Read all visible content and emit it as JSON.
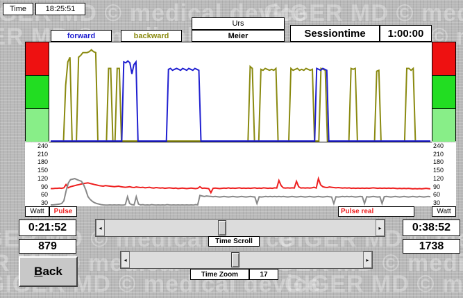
{
  "watermark_text": "GIGER MD © medical device",
  "header": {
    "time_label": "Time",
    "time_value": "18:25:51",
    "forward_label": "forward",
    "backward_label": "backward",
    "first_name": "Urs",
    "last_name": "Meier",
    "session_label": "Sessiontime",
    "session_value": "1:00:00"
  },
  "colors": {
    "forward": "#1f1fd0",
    "backward": "#8a8a10",
    "pulse": "#ee2020",
    "pulse_real": "#888888",
    "zone_red": "#ee1111",
    "zone_green": "#22dd22",
    "zone_lightgreen": "#88ee88"
  },
  "axis": {
    "ticks": [
      "240",
      "210",
      "180",
      "150",
      "120",
      "90",
      "60",
      "30"
    ],
    "unit_left": "Watt",
    "unit_right": "Watt",
    "pulse_label": "Pulse",
    "pulse_real_label": "Pulse real"
  },
  "stats": {
    "left_time": "0:21:52",
    "left_value": "879",
    "right_time": "0:38:52",
    "right_value": "1738"
  },
  "controls": {
    "time_scroll_label": "Time Scroll",
    "time_scroll_position": 0.43,
    "time_zoom_label": "Time Zoom",
    "time_zoom_value": "17",
    "time_zoom_position": 0.45,
    "back_label": "Back",
    "back_mnemonic": "B",
    "back_rest": "ack",
    "left_arrow": "◂",
    "right_arrow": "▸"
  },
  "chart_data": [
    {
      "type": "line",
      "series": [
        {
          "key": "backward",
          "values": [
            0,
            0,
            0,
            0,
            0,
            0,
            0,
            60,
            85,
            90,
            0,
            0,
            0,
            90,
            92,
            95,
            95,
            95,
            96,
            98,
            96,
            95,
            0,
            0,
            0,
            0,
            0,
            78,
            78,
            0,
            0,
            78,
            78,
            0,
            0,
            0,
            0,
            0,
            0,
            0,
            0,
            0,
            0,
            0,
            0,
            0,
            0,
            0,
            0,
            0,
            0,
            0,
            0,
            0,
            0,
            0,
            0,
            0,
            0,
            0,
            0,
            0,
            0,
            0,
            0,
            0,
            0,
            0,
            0,
            0,
            0,
            0,
            0,
            0,
            0,
            0,
            0,
            0,
            0,
            0,
            0,
            0,
            0,
            0,
            0,
            0,
            0,
            0,
            0,
            0,
            0,
            0,
            0,
            80,
            78,
            0,
            0,
            0,
            77,
            76,
            78,
            77,
            76,
            77,
            76,
            78,
            0,
            0,
            0,
            0,
            0,
            0,
            78,
            76,
            77,
            78,
            76,
            77,
            76,
            78,
            77,
            76,
            77,
            0,
            0,
            0,
            78,
            77,
            76,
            0,
            0,
            0,
            0,
            0,
            0,
            0,
            0,
            0,
            0,
            0,
            78,
            77,
            78,
            0,
            0,
            0,
            0,
            0,
            0,
            0,
            0,
            0,
            75,
            76,
            0,
            0,
            0,
            0,
            0,
            0,
            0,
            0,
            0,
            0,
            0,
            0,
            78,
            78,
            76,
            78,
            0,
            0,
            0,
            0,
            0,
            0,
            0,
            0
          ]
        },
        {
          "key": "forward",
          "values": [
            0,
            0,
            0,
            0,
            0,
            0,
            0,
            0,
            0,
            0,
            0,
            0,
            0,
            0,
            0,
            0,
            0,
            0,
            0,
            0,
            0,
            0,
            0,
            0,
            0,
            0,
            0,
            0,
            0,
            0,
            0,
            0,
            0,
            0,
            0,
            0,
            85,
            84,
            86,
            84,
            72,
            82,
            85,
            0,
            0,
            0,
            0,
            0,
            0,
            0,
            0,
            0,
            0,
            0,
            0,
            0,
            0,
            0,
            77,
            78,
            76,
            77,
            78,
            77,
            76,
            78,
            77,
            76,
            78,
            77,
            76,
            78,
            77,
            76,
            0,
            0,
            0,
            0,
            0,
            0,
            0,
            0,
            0,
            0,
            0,
            0,
            0,
            0,
            0,
            0,
            0,
            0,
            0,
            0,
            0,
            0,
            0,
            0,
            0,
            0,
            0,
            0,
            0,
            0,
            0,
            0,
            0,
            0,
            0,
            0,
            0,
            0,
            0,
            0,
            0,
            0,
            0,
            0,
            0,
            0,
            0,
            0,
            0,
            0,
            0,
            0,
            0,
            0,
            0,
            0,
            0,
            78,
            77,
            76,
            78,
            77,
            76,
            0,
            0,
            0,
            0,
            0,
            0,
            0,
            0,
            0,
            0,
            0,
            0,
            0,
            0,
            0,
            0,
            0,
            0,
            0,
            0,
            0,
            0,
            0,
            0,
            0,
            0,
            0,
            0,
            0,
            0,
            0,
            0,
            0,
            0,
            0,
            0,
            0,
            0,
            0,
            0,
            0,
            0,
            0,
            0,
            0,
            0,
            0,
            0,
            0,
            0,
            0
          ]
        }
      ]
    },
    {
      "type": "line",
      "ylim": [
        0,
        240
      ],
      "series": [
        {
          "key": "pulse",
          "values": [
            85,
            85,
            86,
            86,
            87,
            86,
            88,
            100,
            88,
            92,
            94,
            96,
            98,
            100,
            102,
            104,
            105,
            106,
            104,
            102,
            100,
            98,
            96,
            95,
            94,
            96,
            95,
            94,
            93,
            92,
            93,
            94,
            92,
            91,
            90,
            91,
            92,
            90,
            89,
            91,
            90,
            89,
            90,
            88,
            89,
            90,
            88,
            87,
            89,
            88,
            87,
            88,
            86,
            87,
            88,
            87,
            86,
            87,
            85,
            86,
            87,
            86,
            85,
            86,
            87,
            86,
            85,
            86,
            92,
            86,
            87,
            86,
            85,
            70,
            86,
            87,
            86,
            85,
            86,
            87,
            86,
            88,
            86,
            87,
            86,
            87,
            88,
            86,
            87,
            86,
            87,
            86,
            87,
            88,
            86,
            87,
            86,
            88,
            87,
            86,
            87,
            86,
            88,
            87,
            115,
            96,
            88,
            87,
            88,
            87,
            88,
            87,
            112,
            92,
            87,
            88,
            87,
            88,
            87,
            88,
            90,
            87,
            122,
            99,
            92,
            90,
            89,
            91,
            90,
            89,
            88,
            89,
            88,
            87,
            88,
            87,
            88,
            86,
            87,
            86,
            87,
            86,
            87,
            86,
            87,
            86,
            87,
            88,
            87,
            86,
            87,
            86,
            87,
            86,
            87,
            86,
            87,
            86,
            85,
            86,
            85,
            86,
            85,
            86,
            85,
            84,
            85,
            84,
            85,
            84,
            85,
            86,
            85,
            84
          ]
        },
        {
          "key": "pulse_real",
          "values": [
            25,
            25,
            26,
            27,
            28,
            30,
            40,
            75,
            105,
            118,
            120,
            122,
            118,
            115,
            112,
            100,
            80,
            55,
            45,
            38,
            33,
            30,
            28,
            26,
            25,
            24,
            24,
            25,
            24,
            25,
            24,
            25,
            24,
            24,
            26,
            55,
            30,
            26,
            25,
            55,
            28,
            25,
            26,
            24,
            25,
            24,
            26,
            25,
            24,
            25,
            24,
            25,
            24,
            26,
            25,
            24,
            25,
            24,
            25,
            24,
            25,
            24,
            25,
            24,
            25,
            24,
            26,
            25,
            60,
            58,
            56,
            58,
            57,
            56,
            55,
            56,
            55,
            54,
            55,
            56,
            55,
            54,
            55,
            56,
            55,
            54,
            55,
            56,
            55,
            54,
            55,
            56,
            55,
            54,
            30,
            55,
            54,
            55,
            56,
            55,
            56,
            55,
            56,
            55,
            56,
            55,
            56,
            55,
            54,
            55,
            56,
            55,
            54,
            55,
            56,
            55,
            54,
            55,
            56,
            55,
            54,
            55,
            56,
            55,
            54,
            55,
            56,
            55,
            54,
            30,
            55,
            54,
            55,
            56,
            55,
            56,
            55,
            56,
            55,
            54,
            55,
            56,
            55,
            30,
            55,
            54,
            55,
            56,
            55,
            54,
            55,
            30,
            55,
            56,
            55,
            54,
            55,
            56,
            55,
            54,
            55,
            56,
            55,
            54,
            55,
            56,
            55,
            54,
            56,
            55,
            54,
            55,
            56,
            55
          ]
        }
      ]
    }
  ]
}
